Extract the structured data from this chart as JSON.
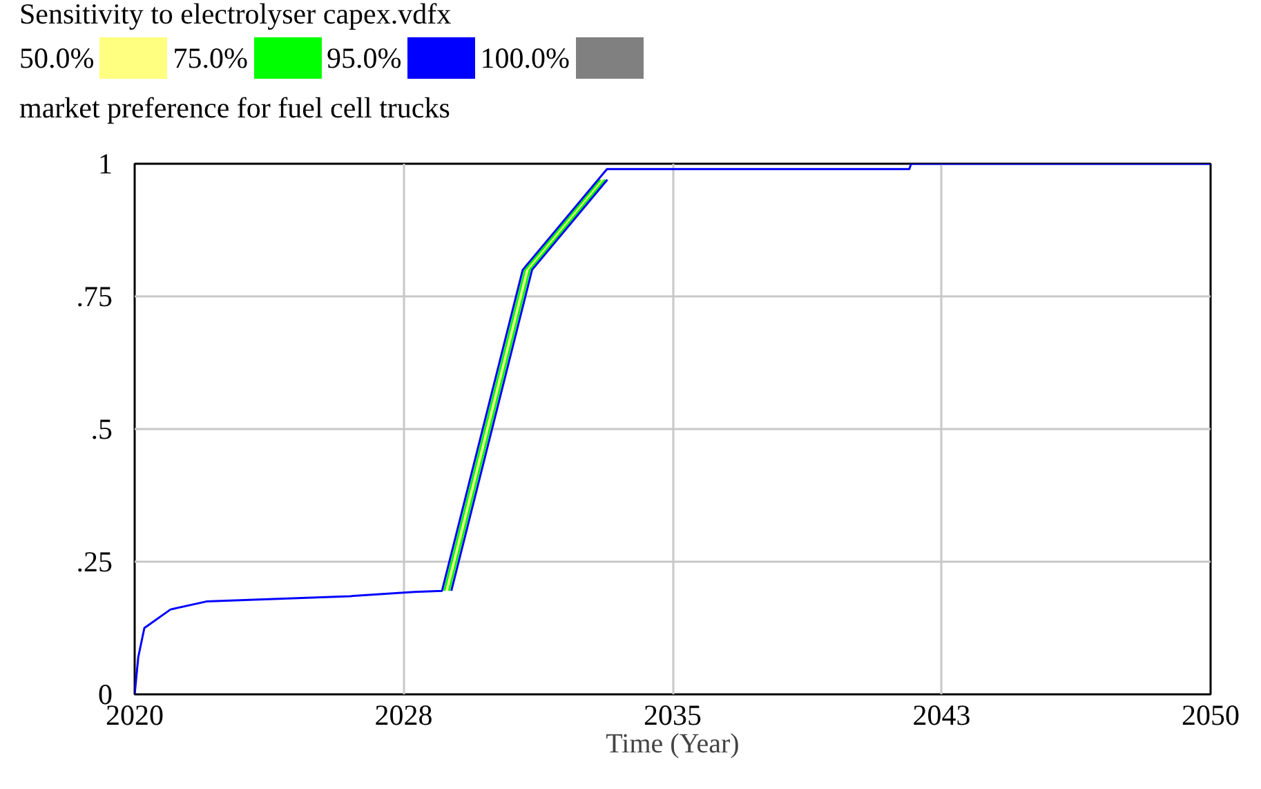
{
  "chart_data": {
    "type": "line",
    "title": "Sensitivity to electrolyser capex.vdfx",
    "ylabel": "market preference for fuel cell trucks",
    "xlabel": "Time (Year)",
    "xlim": [
      2020,
      2050
    ],
    "xticks": [
      2020,
      {
        "value": 2027.5,
        "label": "2028"
      },
      2035,
      {
        "value": 2042.5,
        "label": "2043"
      },
      2050
    ],
    "ylim": [
      0,
      1
    ],
    "yticks": [
      0,
      {
        "value": 0.25,
        "label": ".25"
      },
      {
        "value": 0.5,
        "label": ".5"
      },
      {
        "value": 0.75,
        "label": ".75"
      },
      1
    ],
    "grid": true,
    "legend": "top left",
    "line_style": "solid",
    "marker": "none",
    "series": [
      {
        "name": "50.0%",
        "color": "#ffff80",
        "x": [
          2028.7,
          2030.95,
          2033.05
        ],
        "values": [
          0.195,
          0.8,
          0.97
        ]
      },
      {
        "name": "75.0%",
        "color": "#00ff00",
        "x": [
          2028.635,
          2030.885,
          2032.985
        ],
        "values": [
          0.195,
          0.8,
          0.97
        ]
      },
      {
        "color": "#00ff00",
        "x": [
          2028.765,
          2031.015,
          2033.115
        ],
        "values": [
          0.195,
          0.8,
          0.97
        ]
      },
      {
        "color": "#0000ff",
        "x": [
          2028.83,
          2031.08,
          2033.18
        ],
        "values": [
          0.195,
          0.8,
          0.97
        ]
      },
      {
        "name": "95.0%",
        "color": "#0000ff",
        "x": [
          2020,
          2020.1,
          2020.27,
          2021,
          2022,
          2024,
          2026,
          2027.8,
          2028.57,
          2030.82,
          2033.17,
          2041.6,
          2041.65,
          2050
        ],
        "values": [
          0,
          0.07,
          0.125,
          0.16,
          0.175,
          0.18,
          0.185,
          0.193,
          0.195,
          0.8,
          0.99,
          0.99,
          1,
          1
        ]
      },
      {
        "name": "100.0%",
        "color": "#808080"
      }
    ]
  }
}
